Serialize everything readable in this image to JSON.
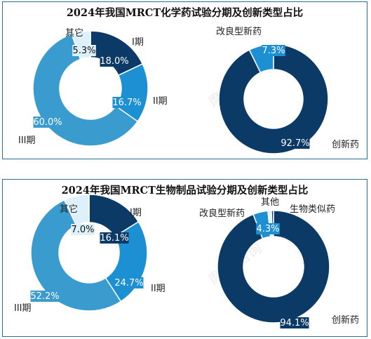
{
  "colors": {
    "dark_navy": "#0b3a66",
    "mid_blue": "#1d8fd3",
    "teal_blue": "#3a9bce",
    "pale_blue": "#def1fb",
    "border": "#2a6e9a",
    "watermark": "#c9c9c9"
  },
  "watermark_text": "摩熵·咨询",
  "chart_data": [
    {
      "title": "2024年我国MRCT化学药试验分期及创新类型占比",
      "charts": [
        {
          "type": "pie",
          "style": "donut",
          "slices": [
            {
              "label": "I期",
              "value": 18.0,
              "value_label": "18.0%",
              "color": "#0b3a66"
            },
            {
              "label": "II期",
              "value": 16.7,
              "value_label": "16.7%",
              "color": "#1d8fd3"
            },
            {
              "label": "III期",
              "value": 60.0,
              "value_label": "60.0%",
              "color": "#3a9bce"
            },
            {
              "label": "其它",
              "value": 5.3,
              "value_label": "5.3%",
              "color": "#def1fb"
            }
          ]
        },
        {
          "type": "pie",
          "style": "donut",
          "slices": [
            {
              "label": "创新药",
              "value": 92.7,
              "value_label": "92.7%",
              "color": "#0b3a66"
            },
            {
              "label": "改良型新药",
              "value": 7.3,
              "value_label": "7.3%",
              "color": "#1d8fd3"
            }
          ]
        }
      ]
    },
    {
      "title": "2024年我国MRCT生物制品试验分期及创新类型占比",
      "charts": [
        {
          "type": "pie",
          "style": "donut",
          "slices": [
            {
              "label": "I期",
              "value": 16.1,
              "value_label": "16.1%",
              "color": "#0b3a66"
            },
            {
              "label": "II期",
              "value": 24.7,
              "value_label": "24.7%",
              "color": "#1d8fd3"
            },
            {
              "label": "III期",
              "value": 52.2,
              "value_label": "52.2%",
              "color": "#3a9bce"
            },
            {
              "label": "其它",
              "value": 7.0,
              "value_label": "7.0%",
              "color": "#def1fb"
            }
          ]
        },
        {
          "type": "pie",
          "style": "donut",
          "slices": [
            {
              "label": "创新药",
              "value": 94.1,
              "value_label": "94.1%",
              "color": "#0b3a66"
            },
            {
              "label": "改良型新药",
              "value": 4.3,
              "value_label": "4.3%",
              "color": "#1d8fd3"
            },
            {
              "label": "其他",
              "value": 1.0,
              "value_label": "",
              "color": "#def1fb"
            },
            {
              "label": "生物类似药",
              "value": 0.6,
              "value_label": "",
              "color": "#0b3a66"
            }
          ]
        }
      ]
    }
  ]
}
